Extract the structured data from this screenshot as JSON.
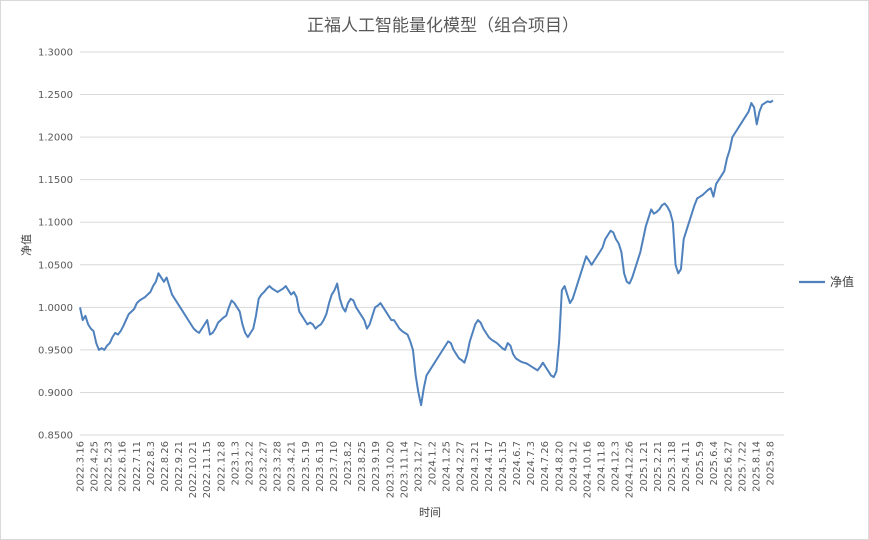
{
  "chart_data": {
    "type": "line",
    "title": "正福人工智能量化模型（组合项目）",
    "xlabel": "时间",
    "ylabel": "净值",
    "ylim": [
      0.85,
      1.3
    ],
    "yticks": [
      "0.8500",
      "0.9000",
      "0.9500",
      "1.0000",
      "1.0500",
      "1.1000",
      "1.1500",
      "1.2000",
      "1.2500",
      "1.3000"
    ],
    "ytick_values": [
      0.85,
      0.9,
      0.95,
      1.0,
      1.05,
      1.1,
      1.15,
      1.2,
      1.25,
      1.3
    ],
    "xticks": [
      "2022.3.16",
      "2022.4.25",
      "2022.5.23",
      "2022.6.16",
      "2022.7.11",
      "2022.8.3",
      "2022.8.26",
      "2022.9.21",
      "2022.10.21",
      "2022.11.15",
      "2022.12.8",
      "2023.1.3",
      "2023.2.2",
      "2023.2.27",
      "2023.3.28",
      "2023.4.21",
      "2023.5.19",
      "2023.6.13",
      "2023.7.10",
      "2023.8.2",
      "2023.8.25",
      "2023.9.19",
      "2023.10.20",
      "2023.11.14",
      "2023.12.7",
      "2024.1.2",
      "2024.1.25",
      "2024.2.27",
      "2024.3.21",
      "2024.4.17",
      "2024.5.15",
      "2024.6.7",
      "2024.7.3",
      "2024.7.26",
      "2024.8.20",
      "2024.9.12",
      "2024.10.16",
      "2024.11.8",
      "2024.12.3",
      "2024.12.26",
      "2025.1.21",
      "2025.2.21",
      "2025.3.18",
      "2025.4.11",
      "2025.5.9",
      "2025.6.4",
      "2025.6.27",
      "2025.7.22",
      "2025.8.14",
      "2025.9.8"
    ],
    "legend_position": "right",
    "grid": true,
    "series": [
      {
        "name": "净值",
        "color": "#4f81bd",
        "values": [
          1.0,
          0.985,
          0.99,
          0.98,
          0.975,
          0.972,
          0.958,
          0.95,
          0.952,
          0.95,
          0.955,
          0.958,
          0.965,
          0.97,
          0.968,
          0.972,
          0.978,
          0.985,
          0.992,
          0.995,
          0.998,
          1.005,
          1.008,
          1.01,
          1.012,
          1.015,
          1.018,
          1.025,
          1.03,
          1.04,
          1.035,
          1.03,
          1.035,
          1.025,
          1.015,
          1.01,
          1.005,
          1.0,
          0.995,
          0.99,
          0.985,
          0.98,
          0.975,
          0.972,
          0.97,
          0.975,
          0.98,
          0.985,
          0.968,
          0.97,
          0.975,
          0.982,
          0.985,
          0.988,
          0.99,
          1.0,
          1.008,
          1.005,
          1.0,
          0.995,
          0.98,
          0.97,
          0.965,
          0.97,
          0.975,
          0.99,
          1.01,
          1.015,
          1.018,
          1.022,
          1.025,
          1.022,
          1.02,
          1.018,
          1.02,
          1.022,
          1.025,
          1.02,
          1.015,
          1.018,
          1.012,
          0.995,
          0.99,
          0.985,
          0.98,
          0.982,
          0.98,
          0.975,
          0.978,
          0.98,
          0.985,
          0.992,
          1.005,
          1.015,
          1.02,
          1.028,
          1.01,
          1.0,
          0.995,
          1.005,
          1.01,
          1.008,
          1.0,
          0.995,
          0.99,
          0.985,
          0.975,
          0.98,
          0.99,
          1.0,
          1.002,
          1.005,
          1.0,
          0.995,
          0.99,
          0.985,
          0.985,
          0.98,
          0.975,
          0.972,
          0.97,
          0.968,
          0.96,
          0.95,
          0.92,
          0.9,
          0.885,
          0.905,
          0.92,
          0.925,
          0.93,
          0.935,
          0.94,
          0.945,
          0.95,
          0.955,
          0.96,
          0.958,
          0.95,
          0.945,
          0.94,
          0.938,
          0.935,
          0.945,
          0.96,
          0.97,
          0.98,
          0.985,
          0.982,
          0.975,
          0.97,
          0.965,
          0.962,
          0.96,
          0.958,
          0.955,
          0.952,
          0.95,
          0.958,
          0.955,
          0.945,
          0.94,
          0.938,
          0.936,
          0.935,
          0.934,
          0.932,
          0.93,
          0.928,
          0.926,
          0.93,
          0.935,
          0.93,
          0.925,
          0.92,
          0.918,
          0.925,
          0.96,
          1.02,
          1.025,
          1.015,
          1.005,
          1.01,
          1.02,
          1.03,
          1.04,
          1.05,
          1.06,
          1.055,
          1.05,
          1.055,
          1.06,
          1.065,
          1.07,
          1.08,
          1.085,
          1.09,
          1.088,
          1.08,
          1.075,
          1.065,
          1.04,
          1.03,
          1.028,
          1.035,
          1.045,
          1.055,
          1.065,
          1.08,
          1.095,
          1.105,
          1.115,
          1.11,
          1.112,
          1.115,
          1.12,
          1.122,
          1.118,
          1.112,
          1.1,
          1.05,
          1.04,
          1.045,
          1.08,
          1.09,
          1.1,
          1.11,
          1.12,
          1.128,
          1.13,
          1.132,
          1.135,
          1.138,
          1.14,
          1.13,
          1.145,
          1.15,
          1.155,
          1.16,
          1.175,
          1.185,
          1.2,
          1.205,
          1.21,
          1.215,
          1.22,
          1.225,
          1.23,
          1.24,
          1.235,
          1.215,
          1.23,
          1.238,
          1.24,
          1.242,
          1.241,
          1.243
        ]
      }
    ]
  }
}
